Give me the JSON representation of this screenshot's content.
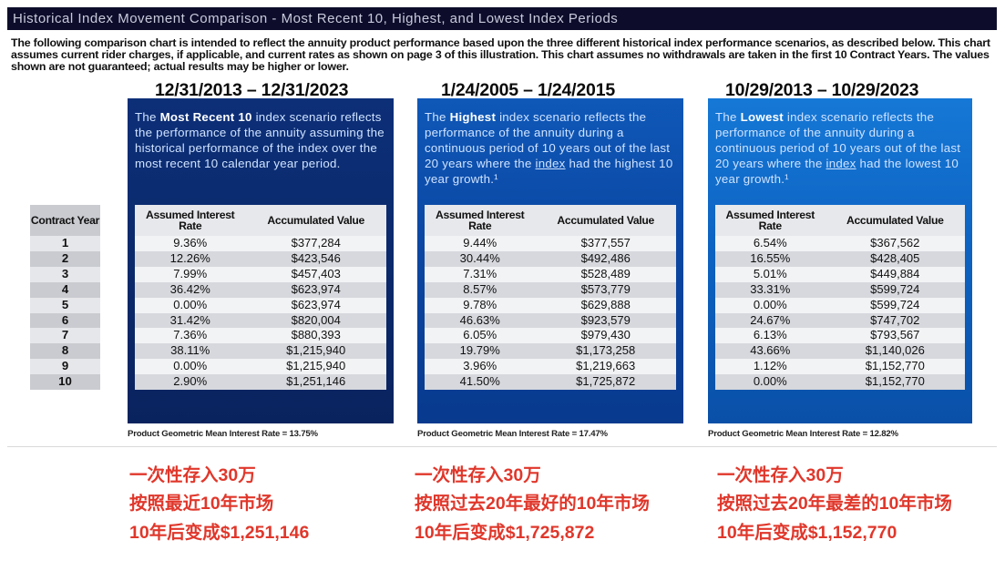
{
  "title": "Historical Index Movement Comparison - Most Recent 10, Highest, and Lowest Index Periods",
  "intro": "The following comparison chart is intended to reflect the annuity product performance based upon the three different historical index performance scenarios, as described below. This chart assumes current rider charges, if applicable, and current rates as shown on page 3 of this illustration. This chart assumes no withdrawals are taken in the first 10 Contract Years. The values shown are not guaranteed; actual results may be higher or lower.",
  "year_column": {
    "header": "Contract Year",
    "years": [
      "1",
      "2",
      "3",
      "4",
      "5",
      "6",
      "7",
      "8",
      "9",
      "10"
    ]
  },
  "table_headers": {
    "rate": "Assumed Interest Rate",
    "value": "Accumulated Value"
  },
  "scenarios": [
    {
      "date_range": "12/31/2013 – 12/31/2023",
      "desc_pre": "The ",
      "desc_bold": "Most Recent 10",
      "desc_post": " index scenario reflects the performance of the annuity assuming the historical performance of the index over the most recent 10 calendar year period.",
      "rows": [
        {
          "rate": "9.36%",
          "value": "$377,284"
        },
        {
          "rate": "12.26%",
          "value": "$423,546"
        },
        {
          "rate": "7.99%",
          "value": "$457,403"
        },
        {
          "rate": "36.42%",
          "value": "$623,974"
        },
        {
          "rate": "0.00%",
          "value": "$623,974"
        },
        {
          "rate": "31.42%",
          "value": "$820,004"
        },
        {
          "rate": "7.36%",
          "value": "$880,393"
        },
        {
          "rate": "38.11%",
          "value": "$1,215,940"
        },
        {
          "rate": "0.00%",
          "value": "$1,215,940"
        },
        {
          "rate": "2.90%",
          "value": "$1,251,146"
        }
      ],
      "geo_mean": "Product Geometric Mean Interest Rate = 13.75%",
      "note": [
        "一次性存入30万",
        "按照最近10年市场",
        "10年后变成$1,251,146"
      ]
    },
    {
      "date_range": "1/24/2005 – 1/24/2015",
      "desc_pre": "The ",
      "desc_bold": "Highest",
      "desc_mid": " index scenario reflects the performance of the annuity during a continuous period of 10 years out of the last 20 years where the ",
      "desc_link": "index",
      "desc_post": " had the highest 10 year growth.¹",
      "rows": [
        {
          "rate": "9.44%",
          "value": "$377,557"
        },
        {
          "rate": "30.44%",
          "value": "$492,486"
        },
        {
          "rate": "7.31%",
          "value": "$528,489"
        },
        {
          "rate": "8.57%",
          "value": "$573,779"
        },
        {
          "rate": "9.78%",
          "value": "$629,888"
        },
        {
          "rate": "46.63%",
          "value": "$923,579"
        },
        {
          "rate": "6.05%",
          "value": "$979,430"
        },
        {
          "rate": "19.79%",
          "value": "$1,173,258"
        },
        {
          "rate": "3.96%",
          "value": "$1,219,663"
        },
        {
          "rate": "41.50%",
          "value": "$1,725,872"
        }
      ],
      "geo_mean": "Product Geometric Mean Interest Rate = 17.47%",
      "note": [
        "一次性存入30万",
        "按照过去20年最好的10年市场",
        "10年后变成$1,725,872"
      ]
    },
    {
      "date_range": "10/29/2013 – 10/29/2023",
      "desc_pre": "The ",
      "desc_bold": "Lowest",
      "desc_mid": " index scenario reflects the performance of the annuity during a continuous period of 10 years out of the last 20 years where the ",
      "desc_link": "index",
      "desc_post": " had the lowest 10 year growth.¹",
      "rows": [
        {
          "rate": "6.54%",
          "value": "$367,562"
        },
        {
          "rate": "16.55%",
          "value": "$428,405"
        },
        {
          "rate": "5.01%",
          "value": "$449,884"
        },
        {
          "rate": "33.31%",
          "value": "$599,724"
        },
        {
          "rate": "0.00%",
          "value": "$599,724"
        },
        {
          "rate": "24.67%",
          "value": "$747,702"
        },
        {
          "rate": "6.13%",
          "value": "$793,567"
        },
        {
          "rate": "43.66%",
          "value": "$1,140,026"
        },
        {
          "rate": "1.12%",
          "value": "$1,152,770"
        },
        {
          "rate": "0.00%",
          "value": "$1,152,770"
        }
      ],
      "geo_mean": "Product Geometric Mean Interest Rate = 12.82%",
      "note": [
        "一次性存入30万",
        "按照过去20年最差的10年市场",
        "10年后变成$1,152,770"
      ]
    }
  ]
}
